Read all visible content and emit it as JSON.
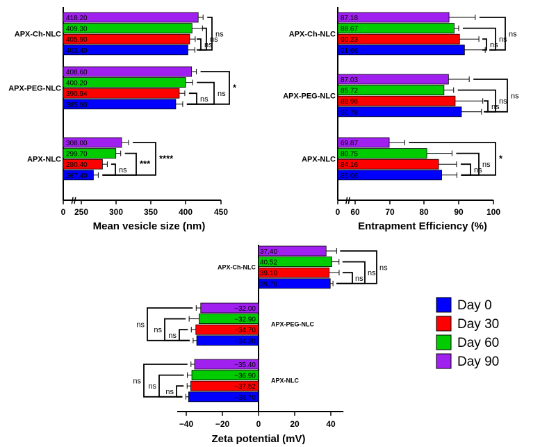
{
  "colors": {
    "day0": "#0000ff",
    "day30": "#ff0000",
    "day60": "#00cc00",
    "day90": "#a020f0",
    "axis": "#000000"
  },
  "legend": {
    "items": [
      {
        "label": "Day 0",
        "color": "#0000ff"
      },
      {
        "label": "Day 30",
        "color": "#ff0000"
      },
      {
        "label": "Day 60",
        "color": "#00cc00"
      },
      {
        "label": "Day 90",
        "color": "#a020f0"
      }
    ]
  },
  "chart_data": [
    {
      "id": "size",
      "type": "bar",
      "orientation": "horizontal",
      "xlabel": "Mean vesicle size (nm)",
      "xlim": [
        230,
        450
      ],
      "axis_break": "//",
      "xticks": [
        "0",
        "250",
        "300",
        "350",
        "400",
        "450"
      ],
      "groups": [
        {
          "name": "APX-Ch-NLC",
          "series": [
            {
              "name": "Day 90",
              "value": 418.2,
              "label": "418.20",
              "error": 7
            },
            {
              "name": "Day 60",
              "value": 409.3,
              "label": "409.30",
              "error": 15
            },
            {
              "name": "Day 30",
              "value": 405.9,
              "label": "405.90",
              "error": 8
            },
            {
              "name": "Day 0",
              "value": 403.4,
              "label": "403.40",
              "error": 10
            }
          ],
          "brackets": [
            "ns",
            "ns",
            "ns"
          ]
        },
        {
          "name": "APX-PEG-NLC",
          "series": [
            {
              "name": "Day 90",
              "value": 408.6,
              "label": "408.60",
              "error": 7
            },
            {
              "name": "Day 60",
              "value": 400.2,
              "label": "400.20",
              "error": 10
            },
            {
              "name": "Day 30",
              "value": 390.94,
              "label": "390.94",
              "error": 8
            },
            {
              "name": "Day 0",
              "value": 385.9,
              "label": "385.90",
              "error": 10
            }
          ],
          "brackets": [
            "ns",
            "ns",
            "*"
          ]
        },
        {
          "name": "APX-NLC",
          "series": [
            {
              "name": "Day 90",
              "value": 308.0,
              "label": "308.00",
              "error": 10
            },
            {
              "name": "Day 60",
              "value": 299.7,
              "label": "299.70",
              "error": 7
            },
            {
              "name": "Day 30",
              "value": 280.4,
              "label": "280.40",
              "error": 7
            },
            {
              "name": "Day 0",
              "value": 267.4,
              "label": "267.40",
              "error": 7
            }
          ],
          "brackets": [
            "ns",
            "***",
            "****"
          ]
        }
      ]
    },
    {
      "id": "ee",
      "type": "bar",
      "orientation": "horizontal",
      "xlabel": "Entrapment Efficiency (%)",
      "xlim": [
        57,
        100
      ],
      "axis_break": "//",
      "xticks": [
        "0",
        "60",
        "70",
        "80",
        "90",
        "100"
      ],
      "groups": [
        {
          "name": "APX-Ch-NLC",
          "series": [
            {
              "name": "Day 90",
              "value": 87.18,
              "label": "87.18",
              "error": 7.6
            },
            {
              "name": "Day 60",
              "value": 88.67,
              "label": "88.67",
              "error": 1.3
            },
            {
              "name": "Day 30",
              "value": 90.23,
              "label": "90.23",
              "error": 5.6
            },
            {
              "name": "Day 0",
              "value": 91.66,
              "label": "91.66",
              "error": 6.0
            }
          ],
          "brackets": [
            "ns",
            "ns",
            "ns"
          ]
        },
        {
          "name": "APX-PEG-NLC",
          "series": [
            {
              "name": "Day 90",
              "value": 87.03,
              "label": "87.03",
              "error": 6.0
            },
            {
              "name": "Day 60",
              "value": 85.72,
              "label": "85.72",
              "error": 2.8
            },
            {
              "name": "Day 30",
              "value": 88.96,
              "label": "88.96",
              "error": 8.0
            },
            {
              "name": "Day 0",
              "value": 90.78,
              "label": "90.78",
              "error": 5.8
            }
          ],
          "brackets": [
            "ns",
            "ns",
            "ns"
          ]
        },
        {
          "name": "APX-NLC",
          "series": [
            {
              "name": "Day 90",
              "value": 69.87,
              "label": "69.87",
              "error": 4.5
            },
            {
              "name": "Day 60",
              "value": 80.75,
              "label": "80.75",
              "error": 7.3
            },
            {
              "name": "Day 30",
              "value": 84.16,
              "label": "84.16",
              "error": 5.2
            },
            {
              "name": "Day 0",
              "value": 85.06,
              "label": "85.06",
              "error": 4.4
            }
          ],
          "brackets": [
            "ns",
            "ns",
            "*"
          ]
        }
      ]
    },
    {
      "id": "zeta",
      "type": "bar",
      "orientation": "horizontal",
      "xlabel": "Zeta potential (mV)",
      "xlim": [
        -45,
        47
      ],
      "xticks": [
        -40,
        -20,
        0,
        20,
        40
      ],
      "tick_labels": [
        "−40",
        "−20",
        "0",
        "20",
        "40"
      ],
      "groups": [
        {
          "name": "APX-Ch-NLC",
          "series": [
            {
              "name": "Day 90",
              "value": 37.4,
              "label": "37.40",
              "error": 5.8
            },
            {
              "name": "Day 60",
              "value": 40.52,
              "label": "40.52",
              "error": 4.0
            },
            {
              "name": "Day 30",
              "value": 39.1,
              "label": "39.10",
              "error": 5.5
            },
            {
              "name": "Day 0",
              "value": 39.7,
              "label": "39.70",
              "error": 1.5
            }
          ],
          "brackets": [
            "ns",
            "ns",
            "ns"
          ]
        },
        {
          "name": "APX-PEG-NLC",
          "series": [
            {
              "name": "Day 90",
              "value": -32.0,
              "label": "−32.00",
              "error": 2.5
            },
            {
              "name": "Day 60",
              "value": -32.9,
              "label": "−32.90",
              "error": 5.5
            },
            {
              "name": "Day 30",
              "value": -34.7,
              "label": "−34.70",
              "error": 2.5
            },
            {
              "name": "Day 0",
              "value": -34.2,
              "label": "−34.20",
              "error": 2.0
            }
          ],
          "brackets": [
            "ns",
            "ns",
            "ns"
          ]
        },
        {
          "name": "APX-NLC",
          "series": [
            {
              "name": "Day 90",
              "value": -35.4,
              "label": "−35.40",
              "error": 2.0
            },
            {
              "name": "Day 60",
              "value": -36.9,
              "label": "−36.90",
              "error": 2.5
            },
            {
              "name": "Day 30",
              "value": -37.52,
              "label": "−37.52",
              "error": 2.0
            },
            {
              "name": "Day 0",
              "value": -38.7,
              "label": "−38.70",
              "error": 1.5
            }
          ],
          "brackets": [
            "ns",
            "ns",
            "ns"
          ]
        }
      ]
    }
  ]
}
